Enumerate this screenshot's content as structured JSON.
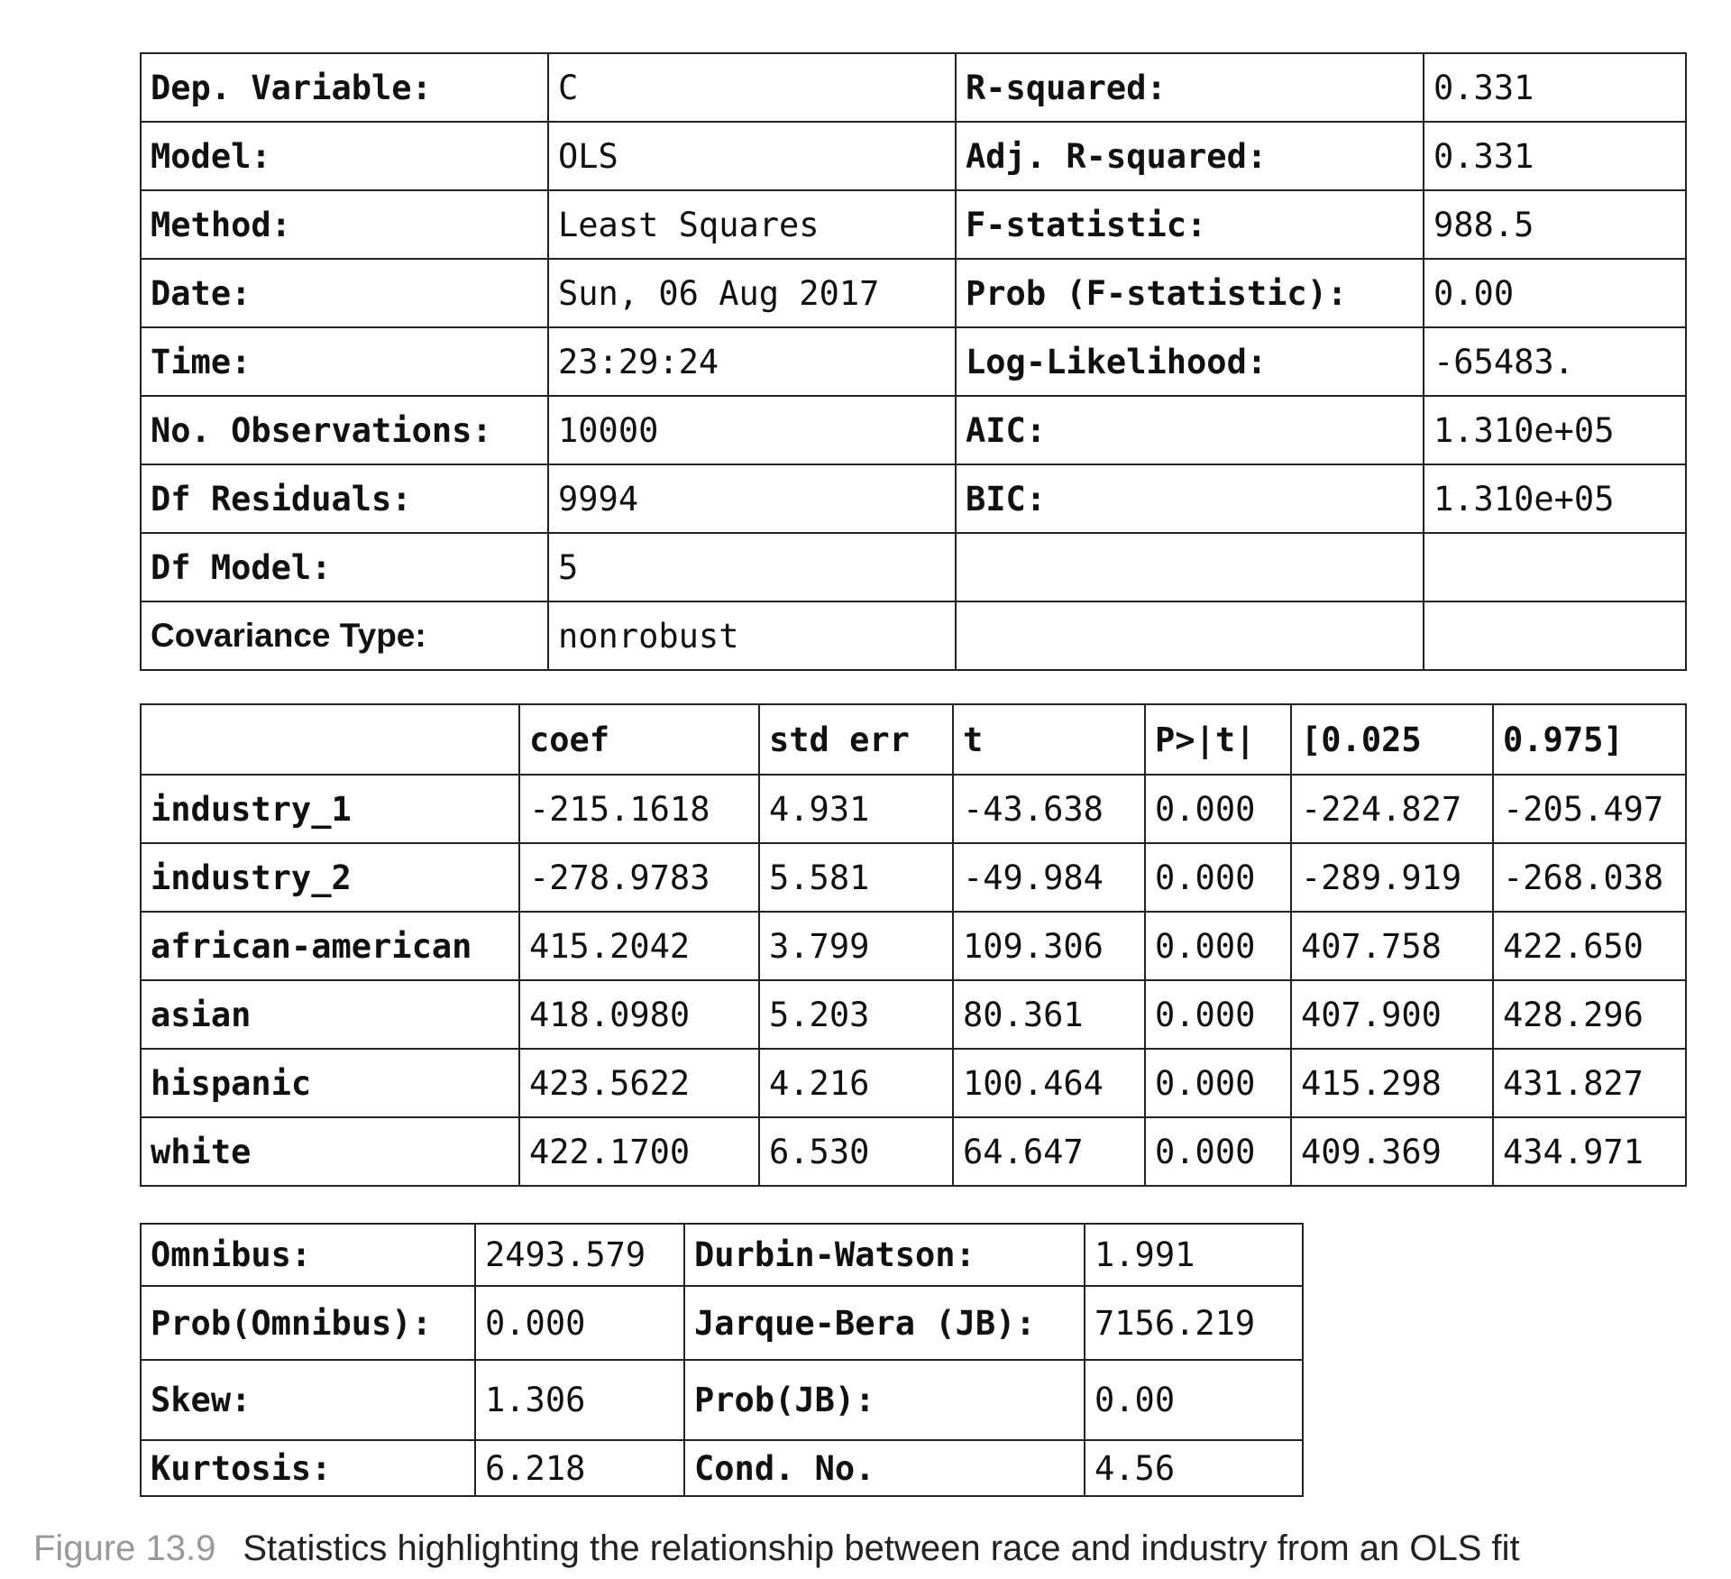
{
  "summary": [
    [
      "Dep. Variable:",
      "C",
      "R-squared:",
      "0.331"
    ],
    [
      "Model:",
      "OLS",
      "Adj. R-squared:",
      "0.331"
    ],
    [
      "Method:",
      "Least Squares",
      "F-statistic:",
      "988.5"
    ],
    [
      "Date:",
      "Sun, 06 Aug 2017",
      "Prob (F-statistic):",
      "0.00"
    ],
    [
      "Time:",
      "23:29:24",
      "Log-Likelihood:",
      "-65483."
    ],
    [
      "No. Observations:",
      "10000",
      "AIC:",
      "1.310e+05"
    ],
    [
      "Df Residuals:",
      "9994",
      "BIC:",
      "1.310e+05"
    ],
    [
      "Df Model:",
      "5",
      "",
      ""
    ],
    [
      "Covariance Type:",
      "nonrobust",
      "",
      ""
    ]
  ],
  "coef_headers": [
    "",
    "coef",
    "std err",
    "t",
    "P>|t|",
    "[0.025",
    "0.975]"
  ],
  "coef_rows": [
    [
      "industry_1",
      "-215.1618",
      "4.931",
      "-43.638",
      "0.000",
      "-224.827",
      "-205.497"
    ],
    [
      "industry_2",
      "-278.9783",
      "5.581",
      "-49.984",
      "0.000",
      "-289.919",
      "-268.038"
    ],
    [
      "african-american",
      "415.2042",
      "3.799",
      "109.306",
      "0.000",
      "407.758",
      "422.650"
    ],
    [
      "asian",
      "418.0980",
      "5.203",
      "80.361",
      "0.000",
      "407.900",
      "428.296"
    ],
    [
      "hispanic",
      "423.5622",
      "4.216",
      "100.464",
      "0.000",
      "415.298",
      "431.827"
    ],
    [
      "white",
      "422.1700",
      "6.530",
      "64.647",
      "0.000",
      "409.369",
      "434.971"
    ]
  ],
  "diagnostics": [
    [
      "Omnibus:",
      "2493.579",
      "Durbin-Watson:",
      "1.991"
    ],
    [
      "Prob(Omnibus):",
      "0.000",
      "Jarque-Bera (JB):",
      "7156.219"
    ],
    [
      "Skew:",
      "1.306",
      "Prob(JB):",
      "0.00"
    ],
    [
      "Kurtosis:",
      "6.218",
      "Cond. No.",
      "4.56"
    ]
  ],
  "caption": {
    "number": "Figure 13.9",
    "text": "Statistics highlighting the relationship between race and industry from an OLS fit"
  }
}
